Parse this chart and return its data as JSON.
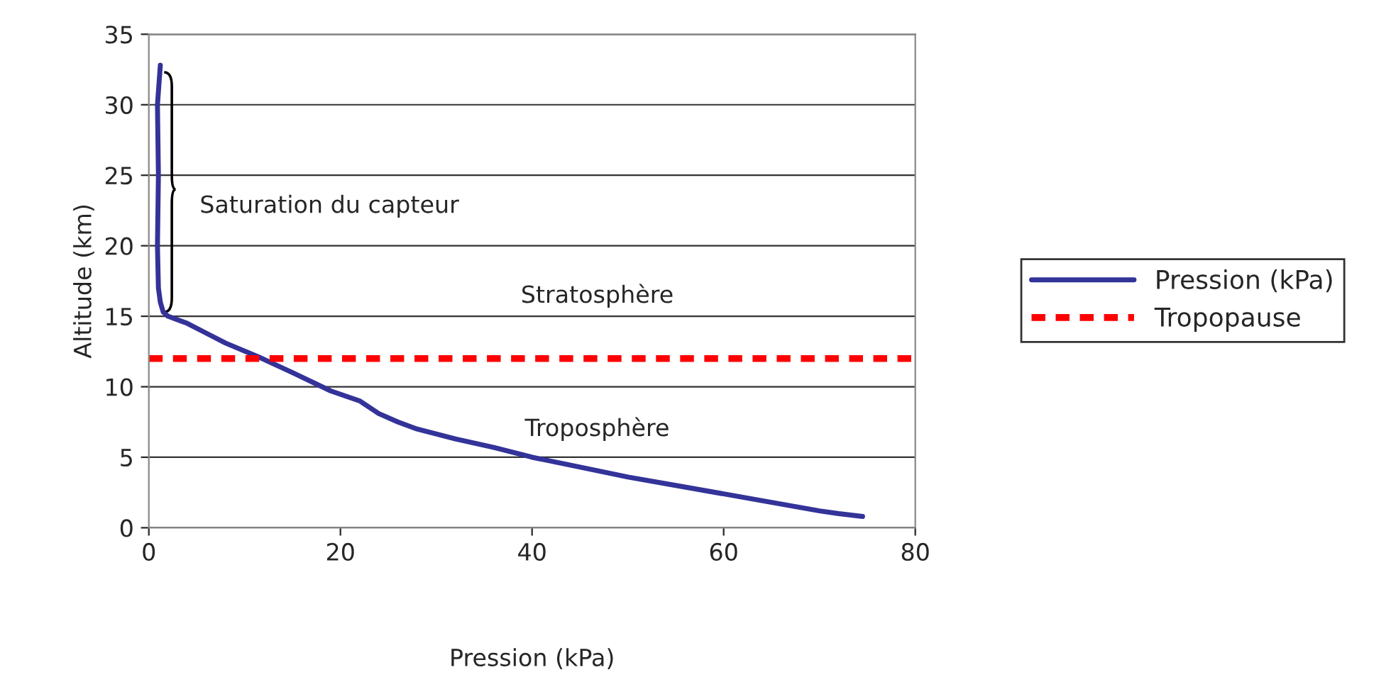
{
  "chart_data": {
    "type": "line",
    "xlabel": "Pression (kPa)",
    "ylabel": "Altitude (km)",
    "xlim": [
      0,
      80
    ],
    "ylim": [
      0,
      35
    ],
    "xticks": [
      0,
      20,
      40,
      60,
      80
    ],
    "yticks": [
      0,
      5,
      10,
      15,
      20,
      25,
      30,
      35
    ],
    "grid": "y",
    "legend": "right",
    "series": [
      {
        "name": "Pression (kPa)",
        "color": "#333399",
        "line_style": "solid",
        "x": [
          1.2,
          0.9,
          1.0,
          0.9,
          1.0,
          1.2,
          1.5,
          2,
          4,
          6,
          8,
          11.5,
          15,
          19,
          22,
          24,
          26,
          28,
          32,
          36,
          40,
          45,
          50,
          55,
          60,
          65,
          70,
          72,
          74.5
        ],
        "values": [
          32.8,
          30,
          25,
          20,
          17,
          16,
          15.3,
          15,
          14.5,
          13.8,
          13.1,
          12.1,
          11,
          9.7,
          9,
          8.1,
          7.5,
          7,
          6.3,
          5.7,
          5,
          4.3,
          3.6,
          3,
          2.4,
          1.8,
          1.2,
          1,
          0.8
        ]
      },
      {
        "name": "Tropopause",
        "color": "#ff0000",
        "line_style": "dashed",
        "x": [
          0,
          80
        ],
        "values": [
          12,
          12
        ]
      }
    ],
    "annotations": [
      {
        "text": "Saturation du capteur",
        "x": 1.0,
        "y": 24
      },
      "Stratosphère",
      "Troposphère"
    ]
  }
}
